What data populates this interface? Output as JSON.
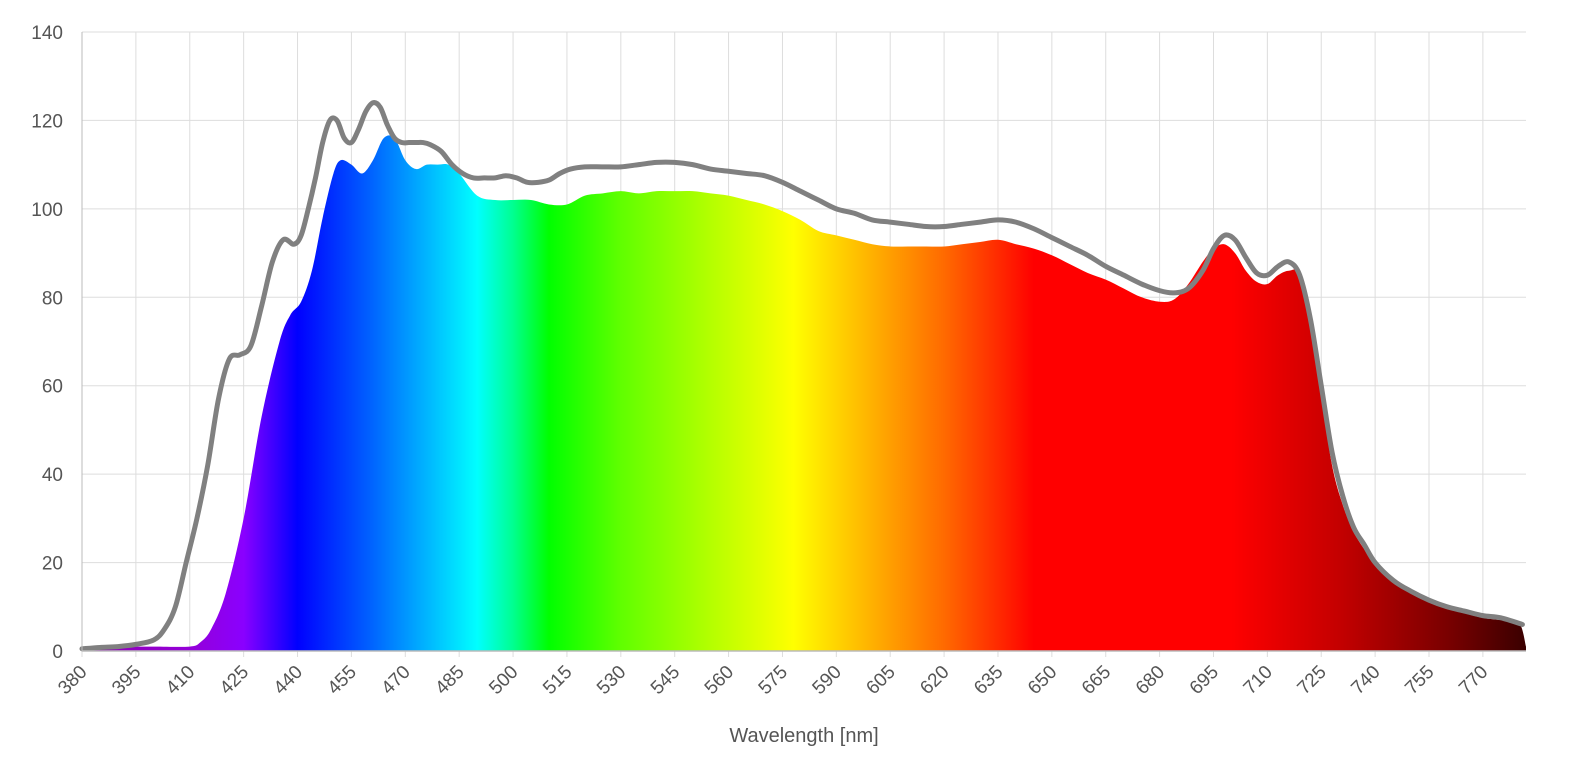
{
  "chart_data": {
    "type": "area",
    "title": "",
    "xlabel": "Wavelength [nm]",
    "ylabel": "",
    "xlim": [
      380,
      782
    ],
    "ylim": [
      0,
      140
    ],
    "grid": true,
    "x_ticks": [
      380,
      395,
      410,
      425,
      440,
      455,
      470,
      485,
      500,
      515,
      530,
      545,
      560,
      575,
      590,
      605,
      620,
      635,
      650,
      665,
      680,
      695,
      710,
      725,
      740,
      755,
      770
    ],
    "y_ticks": [
      0,
      20,
      40,
      60,
      80,
      100,
      120,
      140
    ],
    "series": [
      {
        "style": "spectral-gradient-fill",
        "x": [
          380,
          390,
          400,
          410,
          413,
          416,
          420,
          425,
          430,
          435,
          438,
          441,
          444,
          447,
          450,
          452,
          455,
          458,
          461,
          464,
          467,
          470,
          473,
          476,
          479,
          482,
          485,
          490,
          495,
          500,
          505,
          510,
          515,
          520,
          525,
          530,
          535,
          540,
          545,
          550,
          555,
          560,
          565,
          570,
          575,
          580,
          585,
          590,
          595,
          600,
          605,
          610,
          615,
          620,
          625,
          630,
          635,
          640,
          645,
          650,
          655,
          660,
          665,
          670,
          675,
          680,
          684,
          688,
          692,
          695,
          698,
          701,
          704,
          707,
          710,
          713,
          716,
          719,
          722,
          725,
          728,
          731,
          734,
          737,
          740,
          745,
          750,
          755,
          760,
          765,
          770,
          775,
          780,
          782
        ],
        "y": [
          1,
          1,
          1,
          1,
          2,
          5,
          13,
          30,
          53,
          70,
          76,
          79,
          86,
          98,
          108,
          111,
          110,
          108,
          111,
          116,
          116,
          111,
          109,
          110,
          110,
          110,
          108,
          103,
          102,
          102,
          102,
          101,
          101,
          103,
          103.5,
          104,
          103.5,
          104,
          104,
          104,
          103.5,
          103,
          102,
          101,
          99.5,
          97.5,
          95,
          94,
          93,
          92,
          91.5,
          91.5,
          91.5,
          91.5,
          92,
          92.5,
          93,
          92,
          91,
          89.5,
          87.5,
          85.5,
          84,
          82,
          80,
          79,
          79.5,
          83,
          88,
          91,
          92,
          90,
          86,
          83.5,
          83,
          85,
          86,
          85,
          73,
          58,
          42,
          33,
          27,
          23,
          20,
          15.5,
          13,
          11,
          9.5,
          8.5,
          7.5,
          7,
          6.5,
          1
        ]
      },
      {
        "style": "gray-line",
        "x": [
          380,
          385,
          390,
          395,
          400,
          403,
          406,
          409,
          412,
          415,
          418,
          421,
          424,
          427,
          430,
          433,
          436,
          439,
          441,
          443,
          445,
          447,
          449,
          451,
          453,
          455,
          457,
          459,
          461,
          463,
          465,
          467,
          469,
          471,
          473,
          475,
          477,
          480,
          483,
          486,
          489,
          492,
          495,
          498,
          501,
          504,
          507,
          510,
          513,
          516,
          520,
          525,
          530,
          535,
          540,
          545,
          550,
          555,
          560,
          565,
          570,
          575,
          580,
          585,
          590,
          595,
          600,
          605,
          610,
          615,
          620,
          625,
          630,
          635,
          640,
          645,
          650,
          655,
          660,
          665,
          670,
          675,
          680,
          684,
          688,
          692,
          695,
          698,
          701,
          704,
          707,
          710,
          713,
          716,
          719,
          722,
          725,
          728,
          731,
          734,
          737,
          740,
          745,
          750,
          755,
          760,
          765,
          770,
          775,
          781
        ],
        "y": [
          0.5,
          0.8,
          1,
          1.5,
          2.5,
          5,
          10,
          20,
          30,
          42,
          57,
          66,
          67,
          69,
          78,
          88,
          93,
          92,
          94,
          100,
          107,
          115,
          120,
          120,
          116,
          115,
          118,
          122,
          124,
          123,
          119,
          116,
          115,
          115,
          115,
          115,
          114.5,
          113,
          110,
          108,
          107,
          107,
          107,
          107.5,
          107,
          106,
          106,
          106.5,
          108,
          109,
          109.5,
          109.5,
          109.5,
          110,
          110.5,
          110.5,
          110,
          109,
          108.5,
          108,
          107.5,
          106,
          104,
          102,
          100,
          99,
          97.5,
          97,
          96.5,
          96,
          96,
          96.5,
          97,
          97.5,
          97,
          95.5,
          93.5,
          91.5,
          89.5,
          87,
          85,
          83,
          81.5,
          81,
          82,
          86,
          91,
          94,
          93,
          89,
          85.5,
          85,
          87,
          88,
          85,
          75,
          60,
          45,
          35,
          28,
          24,
          20,
          16,
          13.5,
          11.5,
          10,
          9,
          8,
          7.5,
          6
        ]
      }
    ]
  },
  "colors": {
    "background": "#ffffff",
    "grid": "#dddddd",
    "axis_line": "#bbbbbb",
    "text": "#555555",
    "line": "#808080",
    "spectrum_stops": [
      {
        "nm": 380,
        "color": "#8f00b0"
      },
      {
        "nm": 410,
        "color": "#9400d8"
      },
      {
        "nm": 425,
        "color": "#8a00ff"
      },
      {
        "nm": 440,
        "color": "#0000ff"
      },
      {
        "nm": 460,
        "color": "#0060ff"
      },
      {
        "nm": 475,
        "color": "#00b0ff"
      },
      {
        "nm": 490,
        "color": "#00ffff"
      },
      {
        "nm": 500,
        "color": "#00ff90"
      },
      {
        "nm": 510,
        "color": "#00ff00"
      },
      {
        "nm": 530,
        "color": "#60ff00"
      },
      {
        "nm": 555,
        "color": "#b4ff00"
      },
      {
        "nm": 578,
        "color": "#ffff00"
      },
      {
        "nm": 600,
        "color": "#ffb000"
      },
      {
        "nm": 620,
        "color": "#ff6a00"
      },
      {
        "nm": 645,
        "color": "#ff0000"
      },
      {
        "nm": 700,
        "color": "#ff0000"
      },
      {
        "nm": 730,
        "color": "#c40000"
      },
      {
        "nm": 760,
        "color": "#7a0000"
      },
      {
        "nm": 782,
        "color": "#3a0000"
      }
    ]
  }
}
